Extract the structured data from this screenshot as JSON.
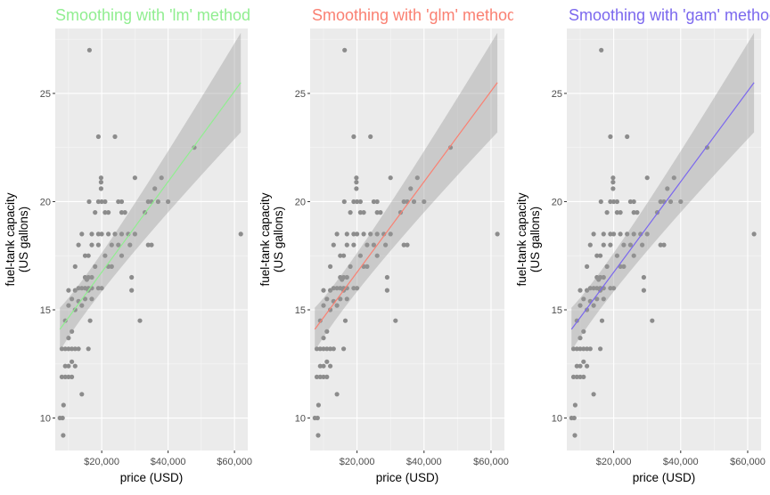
{
  "chart_data": [
    {
      "type": "scatter",
      "title": "Smoothing with 'lm' method",
      "title_color": "#90ee90",
      "line_color": "#90ee90",
      "xlabel": "price (USD)",
      "ylabel": [
        "fuel-tank capacity",
        "(US gallons)"
      ],
      "xlim": [
        6000,
        64000
      ],
      "ylim": [
        8.5,
        28
      ],
      "xticks": [
        20000,
        40000,
        60000
      ],
      "xtick_labels": [
        "$20,000",
        "$40,000",
        "$60,000"
      ],
      "yticks": [
        10,
        15,
        20,
        25
      ],
      "ytick_labels": [
        "10",
        "15",
        "20",
        "25"
      ],
      "grid": true,
      "smooth": {
        "method": "lm",
        "x": [
          7400,
          61900
        ],
        "fit": [
          14.1,
          25.5
        ],
        "se_low": [
          13.1,
          23.2
        ],
        "se_high": [
          15.1,
          27.8
        ]
      }
    },
    {
      "type": "scatter",
      "title": "Smoothing with 'glm' method",
      "title_color": "#fa8072",
      "line_color": "#fa8072",
      "xlabel": "price (USD)",
      "ylabel": [
        "fuel-tank capacity",
        "(US gallons)"
      ],
      "xlim": [
        6000,
        64000
      ],
      "ylim": [
        8.5,
        28
      ],
      "xticks": [
        20000,
        40000,
        60000
      ],
      "xtick_labels": [
        "$20,000",
        "$40,000",
        "$60,000"
      ],
      "yticks": [
        10,
        15,
        20,
        25
      ],
      "ytick_labels": [
        "10",
        "15",
        "20",
        "25"
      ],
      "grid": true,
      "smooth": {
        "method": "glm",
        "x": [
          7400,
          61900
        ],
        "fit": [
          14.1,
          25.5
        ],
        "se_low": [
          13.1,
          23.2
        ],
        "se_high": [
          15.1,
          27.8
        ]
      }
    },
    {
      "type": "scatter",
      "title": "Smoothing with 'gam' method",
      "title_color": "#7b68ee",
      "line_color": "#7b68ee",
      "xlabel": "price (USD)",
      "ylabel": [
        "fuel-tank capacity",
        "(US gallons)"
      ],
      "xlim": [
        6000,
        64000
      ],
      "ylim": [
        8.5,
        28
      ],
      "xticks": [
        20000,
        40000,
        60000
      ],
      "xtick_labels": [
        "$20,000",
        "$40,000",
        "$60,000"
      ],
      "yticks": [
        10,
        15,
        20,
        25
      ],
      "ytick_labels": [
        "10",
        "15",
        "20",
        "25"
      ],
      "grid": true,
      "smooth": {
        "method": "gam",
        "x": [
          7400,
          61900
        ],
        "fit": [
          14.1,
          25.5
        ],
        "se_low": [
          13.1,
          23.2
        ],
        "se_high": [
          15.1,
          27.8
        ]
      }
    }
  ],
  "points": [
    [
      16300,
      27.0
    ],
    [
      24000,
      23.0
    ],
    [
      19000,
      23.0
    ],
    [
      47900,
      22.5
    ],
    [
      61900,
      18.5
    ],
    [
      38000,
      21.1
    ],
    [
      30000,
      21.1
    ],
    [
      19800,
      21.1
    ],
    [
      19800,
      20.9
    ],
    [
      19800,
      20.6
    ],
    [
      26000,
      20.0
    ],
    [
      34000,
      20.0
    ],
    [
      37000,
      20.0
    ],
    [
      40000,
      20.0
    ],
    [
      35000,
      20.0
    ],
    [
      16200,
      20.0
    ],
    [
      19000,
      20.0
    ],
    [
      20000,
      20.0
    ],
    [
      21000,
      20.0
    ],
    [
      25000,
      20.0
    ],
    [
      36000,
      20.6
    ],
    [
      26000,
      19.5
    ],
    [
      21000,
      19.5
    ],
    [
      18000,
      19.5
    ],
    [
      22000,
      19.5
    ],
    [
      27000,
      19.5
    ],
    [
      33000,
      19.5
    ],
    [
      14000,
      18.5
    ],
    [
      17000,
      18.5
    ],
    [
      19000,
      18.5
    ],
    [
      20000,
      18.5
    ],
    [
      22000,
      18.5
    ],
    [
      24000,
      18.5
    ],
    [
      26000,
      18.5
    ],
    [
      28000,
      18.5
    ],
    [
      30000,
      18.5
    ],
    [
      23000,
      18.0
    ],
    [
      25000,
      18.0
    ],
    [
      28500,
      18.0
    ],
    [
      34000,
      18.0
    ],
    [
      35000,
      18.0
    ],
    [
      17000,
      18.0
    ],
    [
      19000,
      18.0
    ],
    [
      13000,
      18.0
    ],
    [
      15000,
      17.5
    ],
    [
      21000,
      17.5
    ],
    [
      16000,
      17.5
    ],
    [
      26000,
      17.5
    ],
    [
      12000,
      17.0
    ],
    [
      18000,
      17.0
    ],
    [
      22000,
      17.0
    ],
    [
      23000,
      17.0
    ],
    [
      16000,
      16.5
    ],
    [
      17000,
      16.5
    ],
    [
      15000,
      16.5
    ],
    [
      29000,
      16.5
    ],
    [
      15500,
      16.4
    ],
    [
      16000,
      16.0
    ],
    [
      13000,
      16.0
    ],
    [
      15000,
      16.0
    ],
    [
      19000,
      16.0
    ],
    [
      20000,
      16.0
    ],
    [
      17000,
      16.0
    ],
    [
      14000,
      16.0
    ],
    [
      29000,
      15.9
    ],
    [
      16000,
      15.9
    ],
    [
      12000,
      15.9
    ],
    [
      10000,
      15.9
    ],
    [
      11000,
      15.5
    ],
    [
      15000,
      15.5
    ],
    [
      17000,
      15.5
    ],
    [
      13000,
      15.4
    ],
    [
      14000,
      15.2
    ],
    [
      10000,
      15.2
    ],
    [
      12000,
      15.0
    ],
    [
      16500,
      14.5
    ],
    [
      9000,
      14.5
    ],
    [
      31500,
      14.5
    ],
    [
      11000,
      14.0
    ],
    [
      10000,
      13.7
    ],
    [
      8000,
      13.2
    ],
    [
      9000,
      13.2
    ],
    [
      10000,
      13.2
    ],
    [
      11000,
      13.2
    ],
    [
      13000,
      13.2
    ],
    [
      16000,
      13.2
    ],
    [
      12000,
      12.4
    ],
    [
      9000,
      12.4
    ],
    [
      10000,
      12.4
    ],
    [
      11000,
      11.9
    ],
    [
      8000,
      11.9
    ],
    [
      9000,
      11.9
    ],
    [
      10000,
      11.9
    ],
    [
      14000,
      11.1
    ],
    [
      8500,
      10.6
    ],
    [
      8200,
      10.0
    ],
    [
      7400,
      10.0
    ],
    [
      8400,
      9.2
    ],
    [
      11000,
      12.6
    ],
    [
      12000,
      13.2
    ]
  ]
}
